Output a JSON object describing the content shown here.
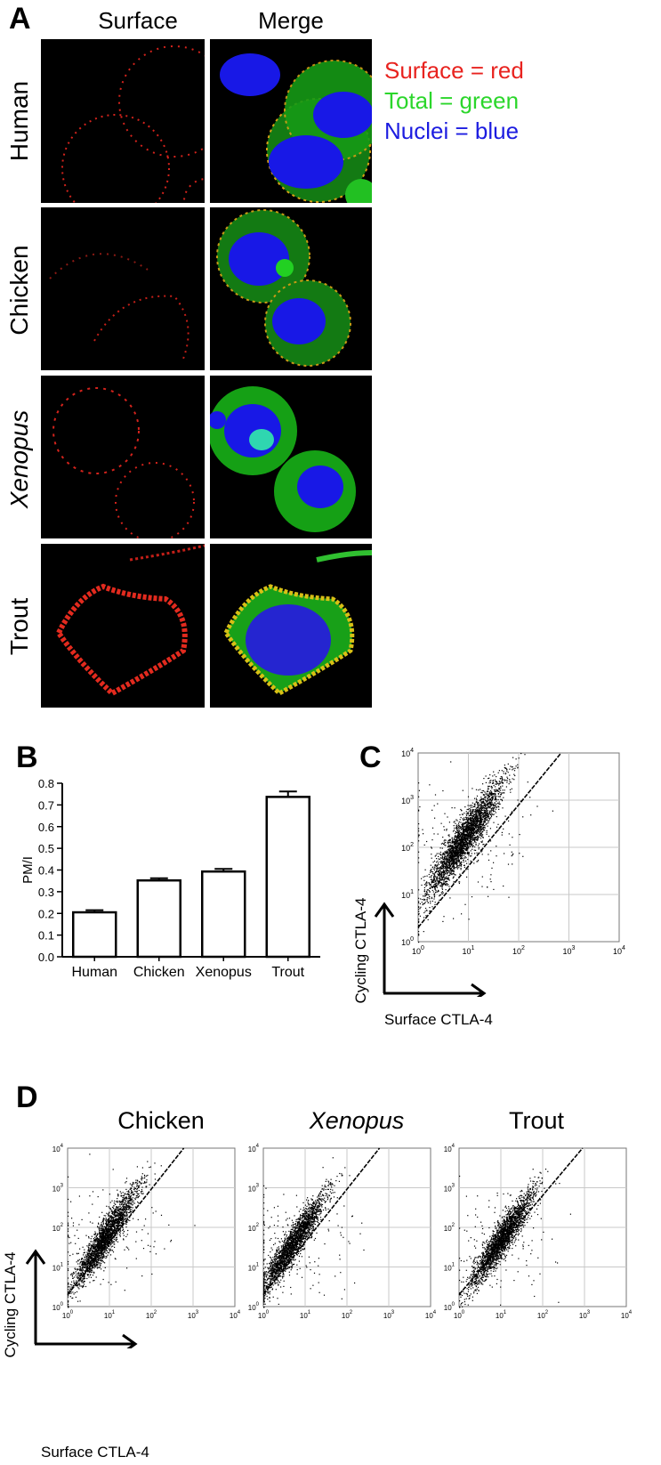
{
  "panelA": {
    "letter": "A",
    "col_surface": "Surface",
    "col_merge": "Merge",
    "rows": [
      {
        "label": "Human",
        "italic": false
      },
      {
        "label": "Chicken",
        "italic": false
      },
      {
        "label": "Xenopus",
        "italic": true
      },
      {
        "label": "Trout",
        "italic": false
      }
    ],
    "legend": [
      {
        "text": "Surface = red",
        "color": "#e8231f"
      },
      {
        "text": "Total  = green",
        "color": "#2bd62b"
      },
      {
        "text": "Nuclei = blue",
        "color": "#1c1ce0"
      }
    ]
  },
  "panelB": {
    "letter": "B",
    "chart_data": {
      "type": "bar",
      "categories": [
        "Human",
        "Chicken",
        "Xenopus",
        "Trout"
      ],
      "values": [
        0.205,
        0.352,
        0.393,
        0.737
      ],
      "errors": [
        0.01,
        0.01,
        0.012,
        0.025
      ],
      "ylabel": "PM/I",
      "xlabel": "",
      "title": "",
      "ylim": [
        0.0,
        0.8
      ],
      "yticks": [
        "0.0",
        "0.1",
        "0.2",
        "0.3",
        "0.4",
        "0.5",
        "0.6",
        "0.7",
        "0.8"
      ]
    }
  },
  "panelC": {
    "letter": "C",
    "chart_data": {
      "type": "scatter",
      "xlabel": "Surface CTLA-4",
      "ylabel": "Cycling CTLA-4",
      "xscale": "log",
      "yscale": "log",
      "xlim": [
        1,
        10000
      ],
      "ylim": [
        1,
        10000
      ],
      "grid": true,
      "ticks": [
        "10",
        "10",
        "10",
        "10",
        "10"
      ],
      "tick_exponents": [
        "0",
        "1",
        "2",
        "3",
        "4"
      ],
      "cloud": {
        "center_x": 8,
        "center_y": 150,
        "spread_log": 0.38
      },
      "diagonal": {
        "x": [
          1,
          700
        ],
        "y": [
          2,
          10000
        ]
      }
    }
  },
  "panelD": {
    "letter": "D",
    "xlabel": "Surface CTLA-4",
    "ylabel": "Cycling CTLA-4",
    "chart_data": [
      {
        "type": "scatter",
        "title": "Chicken",
        "italic": false,
        "xscale": "log",
        "yscale": "log",
        "xlim": [
          1,
          10000
        ],
        "ylim": [
          1,
          10000
        ],
        "grid": true,
        "cloud": {
          "center_x": 8,
          "center_y": 60
        },
        "diagonal": {
          "x": [
            1,
            600
          ],
          "y": [
            2,
            10000
          ]
        }
      },
      {
        "type": "scatter",
        "title": "Xenopus",
        "italic": true,
        "xscale": "log",
        "yscale": "log",
        "xlim": [
          1,
          10000
        ],
        "ylim": [
          1,
          10000
        ],
        "grid": true,
        "cloud": {
          "center_x": 5,
          "center_y": 40
        },
        "diagonal": {
          "x": [
            1,
            600
          ],
          "y": [
            2,
            10000
          ]
        }
      },
      {
        "type": "scatter",
        "title": "Trout",
        "italic": false,
        "xscale": "log",
        "yscale": "log",
        "xlim": [
          1,
          10000
        ],
        "ylim": [
          1,
          10000
        ],
        "grid": true,
        "cloud": {
          "center_x": 10,
          "center_y": 50
        },
        "diagonal": {
          "x": [
            1,
            900
          ],
          "y": [
            2,
            10000
          ]
        }
      }
    ],
    "ticks": [
      "10",
      "10",
      "10",
      "10",
      "10"
    ],
    "tick_exponents": [
      "0",
      "1",
      "2",
      "3",
      "4"
    ]
  }
}
